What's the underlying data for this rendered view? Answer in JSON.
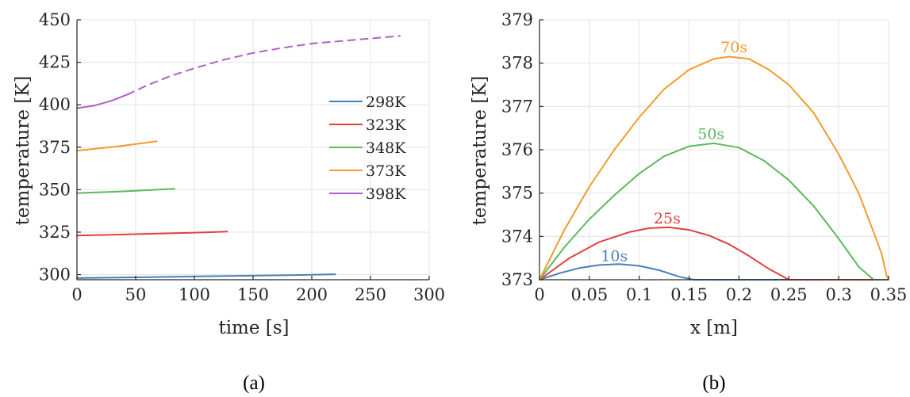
{
  "chart_data": [
    {
      "type": "line",
      "title": "",
      "xlabel": "time [s]",
      "ylabel": "temperature [K]",
      "xlim": [
        0,
        300
      ],
      "ylim": [
        297,
        450
      ],
      "xticks": [
        0,
        50,
        100,
        150,
        200,
        250,
        300
      ],
      "yticks": [
        300,
        325,
        350,
        375,
        400,
        425,
        450
      ],
      "grid": true,
      "legend_position": "right-middle",
      "caption": "(a)",
      "series": [
        {
          "name": "298K",
          "color": "#4a7fb5",
          "style": "solid",
          "x": [
            0,
            50,
            100,
            150,
            200,
            220
          ],
          "y": [
            298,
            298.4,
            298.9,
            299.4,
            299.9,
            300.2
          ]
        },
        {
          "name": "323K",
          "color": "#e0403f",
          "style": "solid",
          "x": [
            0,
            50,
            100,
            128
          ],
          "y": [
            323,
            323.8,
            324.7,
            325.3
          ]
        },
        {
          "name": "348K",
          "color": "#5cb85c",
          "style": "solid",
          "x": [
            0,
            40,
            83
          ],
          "y": [
            348,
            349,
            350.5
          ]
        },
        {
          "name": "373K",
          "color": "#f39a2e",
          "style": "solid",
          "x": [
            0,
            35,
            68
          ],
          "y": [
            373,
            375.5,
            378.5
          ]
        },
        {
          "name": "398K",
          "color": "#b05fc6",
          "style": "solid",
          "x": [
            0,
            15,
            30,
            43
          ],
          "y": [
            398,
            399.5,
            402.5,
            406
          ]
        },
        {
          "name": "",
          "color": "#b05fc6",
          "style": "dashed",
          "x": [
            43,
            60,
            80,
            100,
            125,
            150,
            175,
            200,
            225,
            250,
            275
          ],
          "y": [
            406,
            411.5,
            417,
            421.5,
            426.5,
            430.5,
            433.5,
            436,
            437.5,
            439,
            440.5
          ]
        }
      ]
    },
    {
      "type": "line",
      "title": "",
      "xlabel": "x [m]",
      "ylabel": "temperature [K]",
      "xlim": [
        0,
        0.35
      ],
      "ylim": [
        373,
        379
      ],
      "xticks": [
        0,
        0.05,
        0.1,
        0.15,
        0.2,
        0.25,
        0.3,
        0.35
      ],
      "yticks": [
        373,
        374,
        375,
        376,
        377,
        378,
        379
      ],
      "grid": true,
      "caption": "(b)",
      "series": [
        {
          "name": "10s",
          "color": "#4a7fb5",
          "x": [
            0,
            0.02,
            0.04,
            0.06,
            0.08,
            0.1,
            0.12,
            0.14,
            0.155,
            0.2,
            0.25,
            0.3,
            0.35
          ],
          "y": [
            373,
            373.15,
            373.27,
            373.34,
            373.36,
            373.32,
            373.22,
            373.07,
            373,
            373,
            373,
            373,
            373
          ]
        },
        {
          "name": "25s",
          "color": "#e0403f",
          "x": [
            0,
            0.03,
            0.06,
            0.09,
            0.11,
            0.13,
            0.15,
            0.17,
            0.19,
            0.21,
            0.23,
            0.25,
            0.3,
            0.35
          ],
          "y": [
            373,
            373.5,
            373.87,
            374.1,
            374.19,
            374.21,
            374.15,
            374.02,
            373.82,
            373.55,
            373.25,
            373,
            373,
            373
          ]
        },
        {
          "name": "50s",
          "color": "#5cb85c",
          "x": [
            0,
            0.025,
            0.05,
            0.075,
            0.1,
            0.125,
            0.15,
            0.175,
            0.2,
            0.225,
            0.25,
            0.275,
            0.3,
            0.32,
            0.335,
            0.35
          ],
          "y": [
            373,
            373.75,
            374.4,
            374.95,
            375.45,
            375.85,
            376.08,
            376.15,
            376.05,
            375.75,
            375.3,
            374.7,
            373.95,
            373.3,
            373,
            373
          ]
        },
        {
          "name": "70s",
          "color": "#f39a2e",
          "x": [
            0,
            0.025,
            0.05,
            0.075,
            0.1,
            0.125,
            0.15,
            0.175,
            0.19,
            0.21,
            0.23,
            0.25,
            0.275,
            0.3,
            0.32,
            0.335,
            0.343,
            0.348,
            0.35
          ],
          "y": [
            373,
            374.15,
            375.15,
            376.0,
            376.75,
            377.4,
            377.85,
            378.1,
            378.15,
            378.1,
            377.85,
            377.5,
            376.85,
            375.9,
            375.0,
            374.1,
            373.6,
            373.1,
            373
          ]
        }
      ],
      "annotations": [
        {
          "text": "10s",
          "x": 0.075,
          "y": 373.43,
          "color": "#4a7fb5"
        },
        {
          "text": "25s",
          "x": 0.128,
          "y": 374.3,
          "color": "#e0403f"
        },
        {
          "text": "50s",
          "x": 0.172,
          "y": 376.25,
          "color": "#5cb85c"
        },
        {
          "text": "70s",
          "x": 0.195,
          "y": 378.25,
          "color": "#f39a2e"
        }
      ]
    }
  ]
}
